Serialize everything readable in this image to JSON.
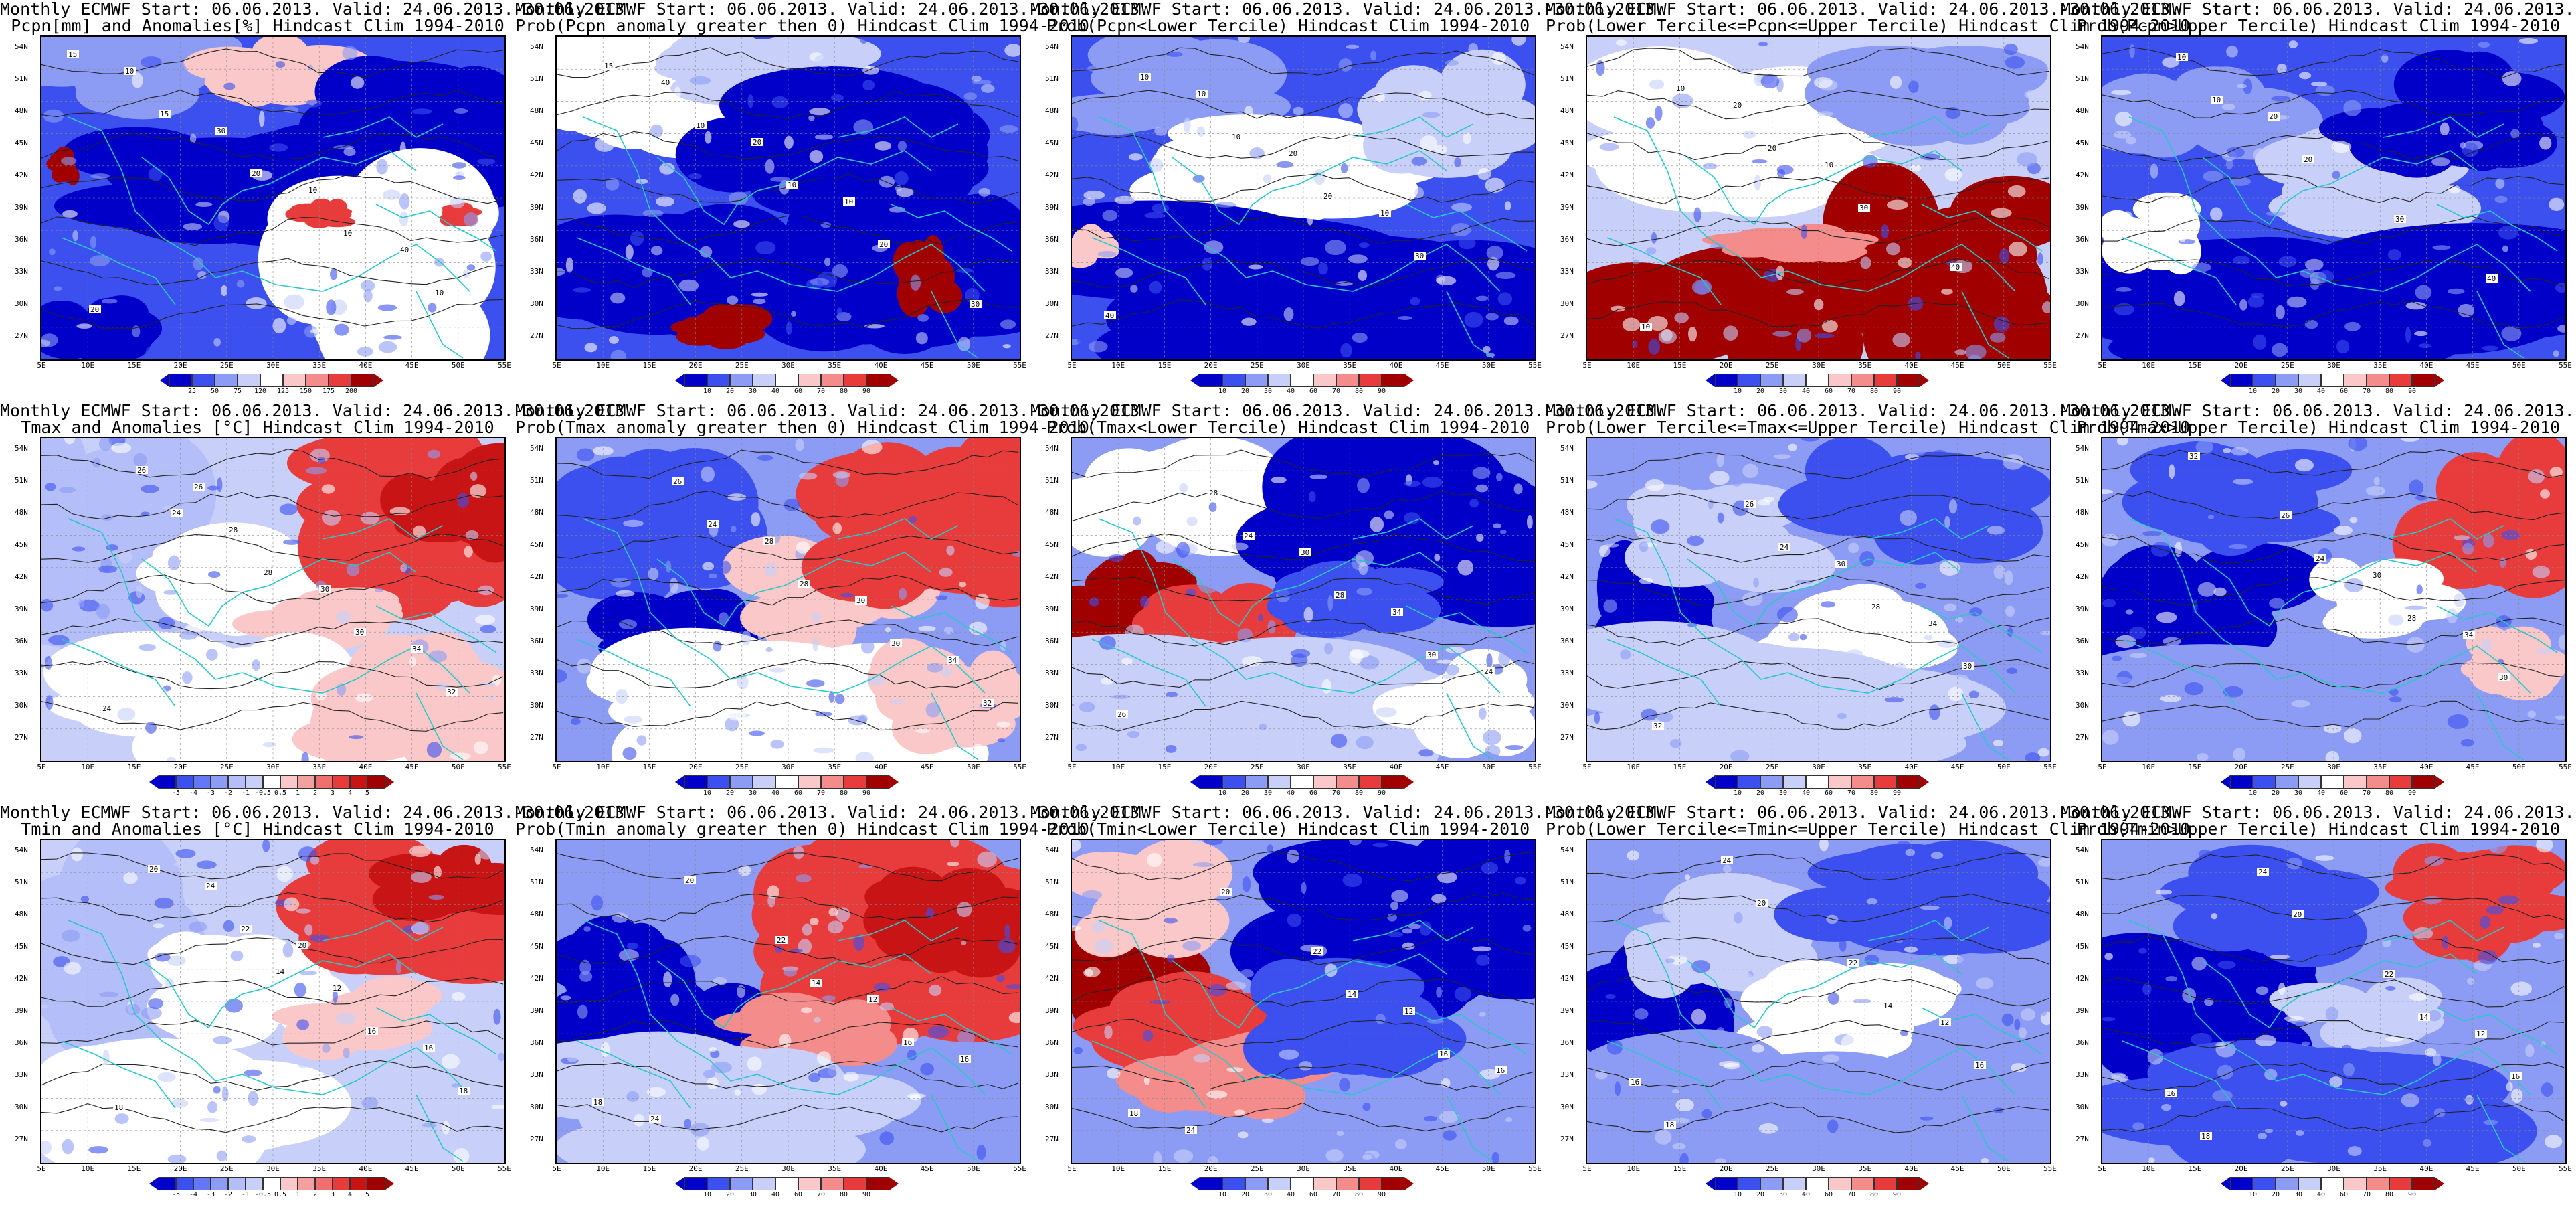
{
  "panels": [
    {
      "title1": "Monthly ECMWF Start: 06.06.2013. Valid: 24.06.2013.-30.06.2013.",
      "title2": "Pcpn[mm] and Anomalies[%] Hindcast Clim 1994-2010",
      "scale": "anom_pcp",
      "theme": "pcpn_anom",
      "contour_labels": [
        "15",
        "15",
        "20",
        "10",
        "10",
        "10",
        "30",
        "10",
        "40",
        "20"
      ],
      "colorbar_labels": [
        "25",
        "50",
        "75",
        "120",
        "125",
        "150",
        "175",
        "200"
      ]
    },
    {
      "title1": "Monthly ECMWF Start: 06.06.2013. Valid: 24.06.2013.-30.06.2013.",
      "title2": "Prob(Pcpn anomaly greater then 0) Hindcast Clim 1994-2010",
      "scale": "prob",
      "theme": "pcpn_gt0",
      "contour_labels": [
        "15",
        "10",
        "10",
        "20",
        "30",
        "40",
        "20",
        "10"
      ],
      "colorbar_labels": [
        "10",
        "20",
        "30",
        "40",
        "60",
        "70",
        "80",
        "90"
      ]
    },
    {
      "title1": "Monthly ECMWF Start: 06.06.2013. Valid: 24.06.2013.-30.06.2013.",
      "title2": "Prob(Pcpn<Lower Tercile) Hindcast Clim 1994-2010",
      "scale": "prob",
      "theme": "pcpn_low",
      "contour_labels": [
        "10",
        "10",
        "20",
        "30",
        "40",
        "10",
        "20",
        "10"
      ],
      "colorbar_labels": [
        "10",
        "20",
        "30",
        "40",
        "60",
        "70",
        "80",
        "90"
      ]
    },
    {
      "title1": "Monthly ECMWF Start: 06.06.2013. Valid: 24.06.2013.-30.06.2013.",
      "title2": "Prob(Lower Tercile<=Pcpn<=Upper Tercile) Hindcast Clim 1994-2010",
      "scale": "prob",
      "theme": "pcpn_mid",
      "contour_labels": [
        "10",
        "20",
        "30",
        "40",
        "10",
        "20",
        "10"
      ],
      "colorbar_labels": [
        "10",
        "20",
        "30",
        "40",
        "60",
        "70",
        "80",
        "90"
      ]
    },
    {
      "title1": "Monthly ECMWF Start: 06.06.2013. Valid: 24.06.2013.-30.06.2013.",
      "title2": "Prob(Pcpn>Upper Tercile) Hindcast Clim 1994-2010",
      "scale": "prob",
      "theme": "pcpn_high",
      "contour_labels": [
        "10",
        "20",
        "30",
        "40",
        "10",
        "20"
      ],
      "colorbar_labels": [
        "10",
        "20",
        "30",
        "40",
        "60",
        "70",
        "80",
        "90"
      ]
    },
    {
      "title1": "Monthly ECMWF Start: 06.06.2013. Valid: 24.06.2013.-30.06.2013.",
      "title2": "Tmax and Anomalies [°C] Hindcast Clim 1994-2010",
      "scale": "anom_t",
      "theme": "tmax_anom",
      "contour_labels": [
        "24",
        "28",
        "30",
        "32",
        "26",
        "28",
        "30",
        "34",
        "24",
        "26"
      ],
      "colorbar_labels": [
        "-5",
        "-4",
        "-3",
        "-2",
        "-1",
        "-0.5",
        "0.5",
        "1",
        "2",
        "3",
        "4",
        "5"
      ]
    },
    {
      "title1": "Monthly ECMWF Start: 06.06.2013. Valid: 24.06.2013.-30.06.2013.",
      "title2": "Prob(Tmax anomaly greater then 0) Hindcast Clim 1994-2010",
      "scale": "prob",
      "theme": "tmax_gt0",
      "contour_labels": [
        "24",
        "28",
        "30",
        "32",
        "26",
        "28",
        "30",
        "34"
      ],
      "colorbar_labels": [
        "10",
        "20",
        "30",
        "40",
        "60",
        "70",
        "80",
        "90"
      ]
    },
    {
      "title1": "Monthly ECMWF Start: 06.06.2013. Valid: 24.06.2013.-30.06.2013.",
      "title2": "Prob(Tmax<Lower Tercile) Hindcast Clim 1994-2010",
      "scale": "prob",
      "theme": "tmax_low",
      "contour_labels": [
        "24",
        "28",
        "30",
        "26",
        "28",
        "30",
        "34",
        "24"
      ],
      "colorbar_labels": [
        "10",
        "20",
        "30",
        "40",
        "60",
        "70",
        "80",
        "90"
      ]
    },
    {
      "title1": "Monthly ECMWF Start: 06.06.2013. Valid: 24.06.2013.-30.06.2013.",
      "title2": "Prob(Lower Tercile<=Tmax<=Upper Tercile) Hindcast Clim 1994-2010",
      "scale": "prob",
      "theme": "tmax_mid",
      "contour_labels": [
        "24",
        "28",
        "30",
        "32",
        "26",
        "30",
        "34"
      ],
      "colorbar_labels": [
        "10",
        "20",
        "30",
        "40",
        "60",
        "70",
        "80",
        "90"
      ]
    },
    {
      "title1": "Monthly ECMWF Start: 06.06.2013. Valid: 24.06.2013.-30.06.2013.",
      "title2": "Prob(Tmax>Upper Tercile) Hindcast Clim 1994-2010",
      "scale": "prob",
      "theme": "tmax_high",
      "contour_labels": [
        "24",
        "28",
        "30",
        "32",
        "26",
        "30",
        "34"
      ],
      "colorbar_labels": [
        "10",
        "20",
        "30",
        "40",
        "60",
        "70",
        "80",
        "90"
      ]
    },
    {
      "title1": "Monthly ECMWF Start: 06.06.2013. Valid: 24.06.2013.-30.06.2013.",
      "title2": "Tmin and Anomalies [°C] Hindcast Clim 1994-2010",
      "scale": "anom_t",
      "theme": "tmin_anom",
      "contour_labels": [
        "14",
        "16",
        "18",
        "20",
        "22",
        "12",
        "16",
        "18",
        "24",
        "20"
      ],
      "colorbar_labels": [
        "-5",
        "-4",
        "-3",
        "-2",
        "-1",
        "-0.5",
        "0.5",
        "1",
        "2",
        "3",
        "4",
        "5"
      ]
    },
    {
      "title1": "Monthly ECMWF Start: 06.06.2013. Valid: 24.06.2013.-30.06.2013.",
      "title2": "Prob(Tmin anomaly greater then 0) Hindcast Clim 1994-2010",
      "scale": "prob",
      "theme": "tmin_gt0",
      "contour_labels": [
        "14",
        "16",
        "18",
        "20",
        "22",
        "12",
        "16",
        "24"
      ],
      "colorbar_labels": [
        "10",
        "20",
        "30",
        "40",
        "60",
        "70",
        "80",
        "90"
      ]
    },
    {
      "title1": "Monthly ECMWF Start: 06.06.2013. Valid: 24.06.2013.-30.06.2013.",
      "title2": "Prob(Tmin<Lower Tercile) Hindcast Clim 1994-2010",
      "scale": "prob",
      "theme": "tmin_low",
      "contour_labels": [
        "14",
        "16",
        "18",
        "20",
        "22",
        "12",
        "16",
        "24"
      ],
      "colorbar_labels": [
        "10",
        "20",
        "30",
        "40",
        "60",
        "70",
        "80",
        "90"
      ]
    },
    {
      "title1": "Monthly ECMWF Start: 06.06.2013. Valid: 24.06.2013.-30.06.2013.",
      "title2": "Prob(Lower Tercile<=Tmin<=Upper Tercile) Hindcast Clim 1994-2010",
      "scale": "prob",
      "theme": "tmin_mid",
      "contour_labels": [
        "14",
        "16",
        "18",
        "20",
        "22",
        "12",
        "16",
        "24"
      ],
      "colorbar_labels": [
        "10",
        "20",
        "30",
        "40",
        "60",
        "70",
        "80",
        "90"
      ]
    },
    {
      "title1": "Monthly ECMWF Start: 06.06.2013. Valid: 24.06.2013.-30.06.2013.",
      "title2": "Prob(Tmin>Upper Tercile) Hindcast Clim 1994-2010",
      "scale": "prob",
      "theme": "tmin_high",
      "contour_labels": [
        "14",
        "16",
        "18",
        "20",
        "22",
        "12",
        "16",
        "24"
      ],
      "colorbar_labels": [
        "10",
        "20",
        "30",
        "40",
        "60",
        "70",
        "80",
        "90"
      ]
    }
  ],
  "axes": {
    "lat_labels": [
      "54N",
      "51N",
      "48N",
      "45N",
      "42N",
      "39N",
      "36N",
      "33N",
      "30N",
      "27N"
    ],
    "lon_labels": [
      "5E",
      "10E",
      "15E",
      "20E",
      "25E",
      "30E",
      "35E",
      "40E",
      "45E",
      "50E",
      "55E"
    ]
  },
  "colors": {
    "land_blank": "#ffffff",
    "coast": "#28c8c8",
    "contour": "#222222",
    "dark_blue": "#0000c8",
    "mid_blue": "#3c50f0",
    "light_blue": "#8c9cf5",
    "pale_blue": "#c8d0fa",
    "pale_red": "#fac8c8",
    "light_red": "#f58c8c",
    "mid_red": "#e83c3c",
    "dark_red": "#a00000"
  },
  "palettes": {
    "prob": [
      "#0000c8",
      "#3c50f0",
      "#8c9cf5",
      "#c8d0fa",
      "#ffffff",
      "#fac8c8",
      "#f58c8c",
      "#e83c3c",
      "#a00000"
    ],
    "anom_t": [
      "#0000c8",
      "#3c50f0",
      "#6478f5",
      "#8c9cf5",
      "#b4bef8",
      "#c8d0fa",
      "#ffffff",
      "#fac8c8",
      "#f5a0a0",
      "#f07070",
      "#e83c3c",
      "#c81414",
      "#a00000"
    ],
    "anom_pcp": [
      "#0000c8",
      "#3c50f0",
      "#8c9cf5",
      "#c8d0fa",
      "#ffffff",
      "#fac8c8",
      "#f58c8c",
      "#e83c3c",
      "#a00000"
    ]
  }
}
